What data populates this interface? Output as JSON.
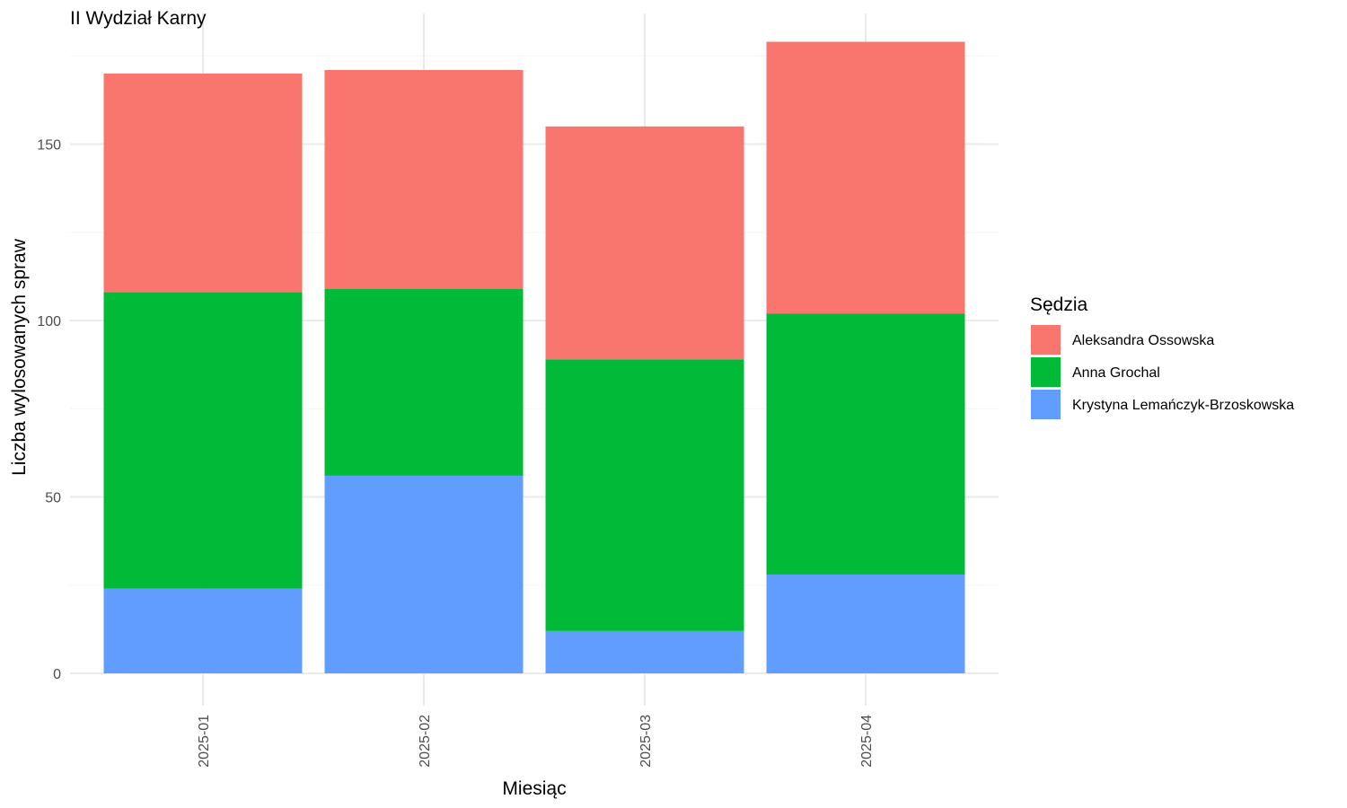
{
  "chart_data": {
    "type": "bar",
    "stacked": true,
    "title": "II Wydział Karny",
    "xlabel": "Miesiąc",
    "ylabel": "Liczba wylosowanych spraw",
    "categories": [
      "2025-01",
      "2025-02",
      "2025-03",
      "2025-04"
    ],
    "series": [
      {
        "name": "Krystyna Lemańczyk-Brzoskowska",
        "color": "#619CFF",
        "values": [
          24,
          56,
          12,
          28
        ]
      },
      {
        "name": "Anna Grochal",
        "color": "#00BA38",
        "values": [
          84,
          53,
          77,
          74
        ]
      },
      {
        "name": "Aleksandra Ossowska",
        "color": "#F8766D",
        "values": [
          62,
          62,
          66,
          77
        ]
      }
    ],
    "legend_title": "Sędzia",
    "legend_order": [
      "Aleksandra Ossowska",
      "Anna Grochal",
      "Krystyna Lemańczyk-Brzoskowska"
    ],
    "y_ticks": [
      0,
      50,
      100,
      150
    ],
    "ylim": [
      0,
      187
    ],
    "grid": true,
    "legend_position": "right",
    "x_tick_rotation": "vertical"
  }
}
